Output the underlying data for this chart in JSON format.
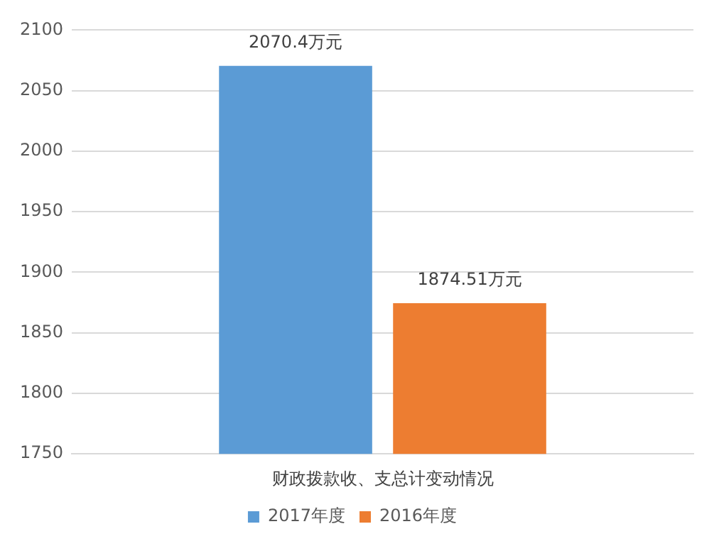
{
  "chart_data": {
    "type": "bar",
    "categories": [
      "财政拨款收、支总计变动情况"
    ],
    "series": [
      {
        "name": "2017年度",
        "color": "#5b9bd5",
        "values": [
          2070.4
        ],
        "value_labels": [
          "2070.4万元"
        ]
      },
      {
        "name": "2016年度",
        "color": "#ed7d31",
        "values": [
          1874.51
        ],
        "value_labels": [
          "1874.51万元"
        ]
      }
    ],
    "ylim": [
      1750,
      2100
    ],
    "yticks": [
      1750,
      1800,
      1850,
      1900,
      1950,
      2000,
      2050,
      2100
    ],
    "grid": "y",
    "legend": "bottom"
  }
}
